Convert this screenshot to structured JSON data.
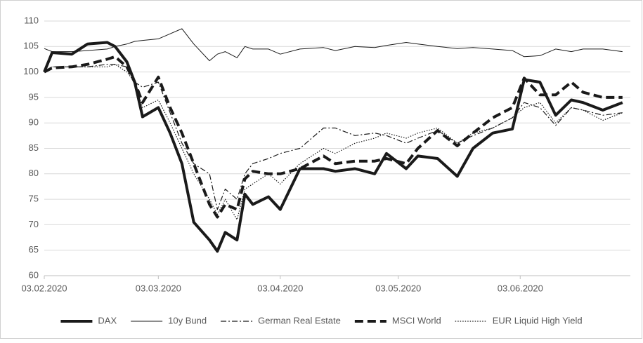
{
  "chart_data": {
    "type": "line",
    "x": [
      "2020-02-03",
      "2020-02-05",
      "2020-02-10",
      "2020-02-14",
      "2020-02-19",
      "2020-02-21",
      "2020-02-24",
      "2020-02-26",
      "2020-02-28",
      "2020-03-03",
      "2020-03-06",
      "2020-03-09",
      "2020-03-12",
      "2020-03-16",
      "2020-03-18",
      "2020-03-20",
      "2020-03-23",
      "2020-03-25",
      "2020-03-27",
      "2020-03-31",
      "2020-04-03",
      "2020-04-08",
      "2020-04-14",
      "2020-04-17",
      "2020-04-22",
      "2020-04-27",
      "2020-04-30",
      "2020-05-05",
      "2020-05-08",
      "2020-05-13",
      "2020-05-18",
      "2020-05-22",
      "2020-05-27",
      "2020-06-01",
      "2020-06-04",
      "2020-06-08",
      "2020-06-12",
      "2020-06-16",
      "2020-06-19",
      "2020-06-24",
      "2020-06-29"
    ],
    "series": [
      {
        "name": "DAX",
        "color": "#1a1a1a",
        "style": "solid",
        "width": 4,
        "values": [
          100,
          103.8,
          103.5,
          105.5,
          105.8,
          105,
          102,
          98,
          91.2,
          93,
          88,
          82,
          70.5,
          67,
          64.8,
          68.5,
          67,
          76,
          74,
          75.5,
          73,
          81,
          81,
          80.5,
          81,
          80,
          84,
          81,
          83.5,
          83,
          79.5,
          85,
          88,
          88.8,
          98.5,
          98,
          91.5,
          94.5,
          94,
          92.5,
          94
        ]
      },
      {
        "name": "10y Bund",
        "color": "#1a1a1a",
        "style": "solid",
        "width": 1,
        "values": [
          104.6,
          104,
          104,
          104.2,
          104.5,
          105,
          105.5,
          106,
          106.2,
          106.5,
          107.5,
          108.5,
          105.5,
          102.2,
          103.5,
          104,
          102.8,
          105,
          104.5,
          104.5,
          103.5,
          104.5,
          104.8,
          104.2,
          105,
          104.8,
          105.2,
          105.8,
          105.5,
          105,
          104.6,
          104.8,
          104.5,
          104.2,
          103,
          103.2,
          104.5,
          104,
          104.5,
          104.5,
          104
        ]
      },
      {
        "name": "German Real Estate",
        "color": "#1a1a1a",
        "style": "dashdot",
        "width": 1.2,
        "values": [
          100,
          101,
          101,
          101,
          101.5,
          101.5,
          101,
          98,
          97,
          98,
          92,
          86,
          82,
          80,
          73,
          77,
          75,
          80,
          82,
          83,
          84,
          85,
          89,
          89,
          87.5,
          88,
          87.5,
          86,
          87,
          88.5,
          86,
          87.5,
          89,
          91,
          94,
          93,
          89.5,
          93,
          92.5,
          91.5,
          92
        ]
      },
      {
        "name": "MSCI World",
        "color": "#1a1a1a",
        "style": "dashed",
        "width": 4,
        "values": [
          100,
          100.8,
          101,
          101.5,
          102.5,
          103,
          101,
          98,
          94,
          99,
          93,
          88,
          82,
          74,
          71.5,
          74,
          73,
          79,
          80.5,
          80,
          80,
          81,
          83.5,
          82,
          82.5,
          82.5,
          83,
          82,
          85,
          88.5,
          85.5,
          88,
          91,
          93,
          98.8,
          95.5,
          95.5,
          98,
          96,
          95,
          95
        ]
      },
      {
        "name": "EUR Liquid High Yield",
        "color": "#1a1a1a",
        "style": "dotted",
        "width": 1.2,
        "values": [
          100,
          101,
          101,
          101,
          101,
          101.5,
          100,
          98,
          93,
          94.5,
          90,
          85,
          80,
          75,
          72,
          75,
          71,
          77,
          78,
          80,
          78,
          82,
          85,
          84,
          86,
          87,
          88,
          87,
          88,
          89,
          86,
          88,
          89,
          91,
          93,
          94,
          90,
          93,
          92.5,
          90.5,
          92
        ]
      }
    ],
    "xlim": [
      "2020-02-03",
      "2020-07-01"
    ],
    "xticks": [
      {
        "value": "2020-02-03",
        "label": "03.02.2020"
      },
      {
        "value": "2020-03-03",
        "label": "03.03.2020"
      },
      {
        "value": "2020-04-03",
        "label": "03.04.2020"
      },
      {
        "value": "2020-05-03",
        "label": "03.05.2020"
      },
      {
        "value": "2020-06-03",
        "label": "03.06.2020"
      }
    ],
    "ylim": [
      60,
      110
    ],
    "yticks": [
      60,
      65,
      70,
      75,
      80,
      85,
      90,
      95,
      100,
      105,
      110
    ],
    "grid": true,
    "legend": "bottom"
  }
}
